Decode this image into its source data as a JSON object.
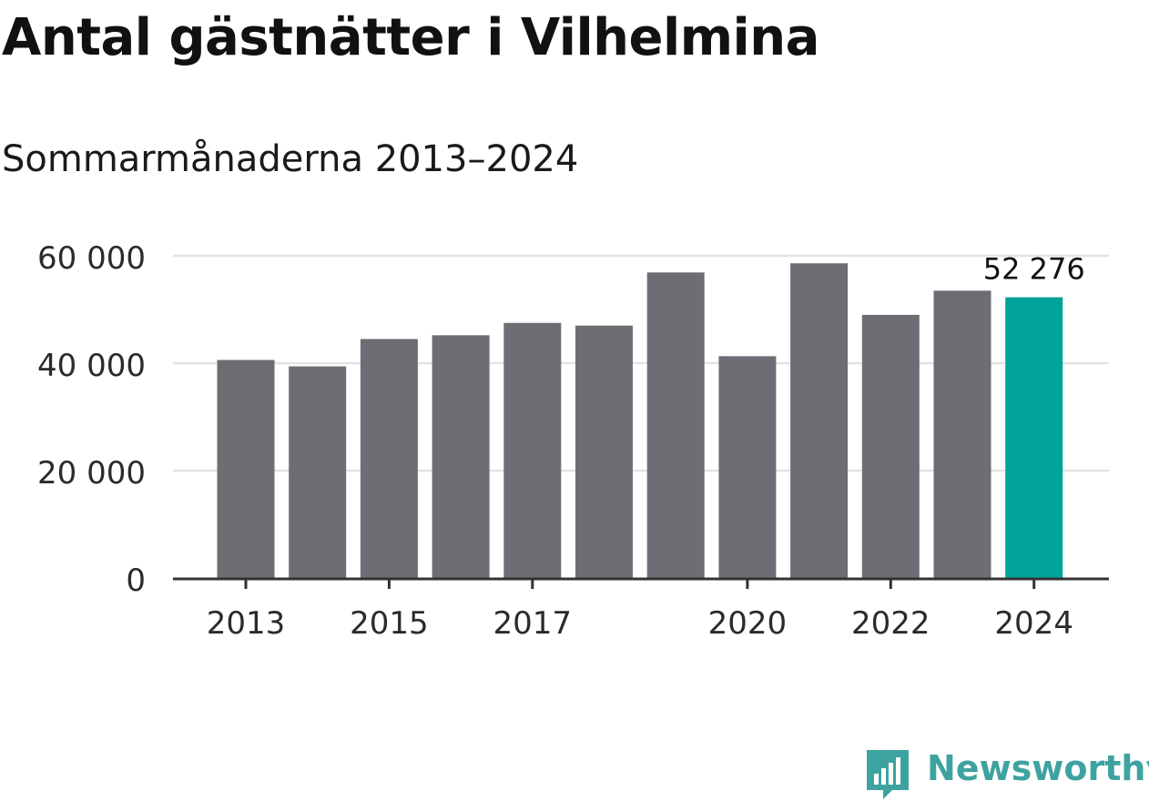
{
  "chart_data": {
    "type": "bar",
    "title": "Antal gästnätter i Vilhelmina",
    "subtitle": "Sommarmånaderna 2013–2024",
    "categories": [
      "2013",
      "2014",
      "2015",
      "2016",
      "2017",
      "2018",
      "2019",
      "2020",
      "2021",
      "2022",
      "2023",
      "2024"
    ],
    "values": [
      40600,
      39400,
      44500,
      45200,
      47500,
      47000,
      56900,
      41300,
      58600,
      49000,
      53500,
      52276
    ],
    "tick_labels_x": [
      "2013",
      "2015",
      "2017",
      "2020",
      "2022",
      "2024"
    ],
    "tick_labels_y": [
      "0",
      "20 000",
      "40 000",
      "60 000"
    ],
    "y_ticks": [
      0,
      20000,
      40000,
      60000
    ],
    "ylim": [
      0,
      60000
    ],
    "highlight_label": "52 276",
    "highlight_index": 11,
    "xlabel": "",
    "ylabel": "",
    "grid": true,
    "colors": {
      "bar": "#6e6d74",
      "highlight": "#00a39a",
      "grid": "#e3e3e3",
      "axis": "#333333",
      "text": "#2b2b2b"
    }
  },
  "brand": {
    "name": "Newsworthy",
    "icon": "newsworthy-logo-icon",
    "color": "#3ea3a0"
  }
}
